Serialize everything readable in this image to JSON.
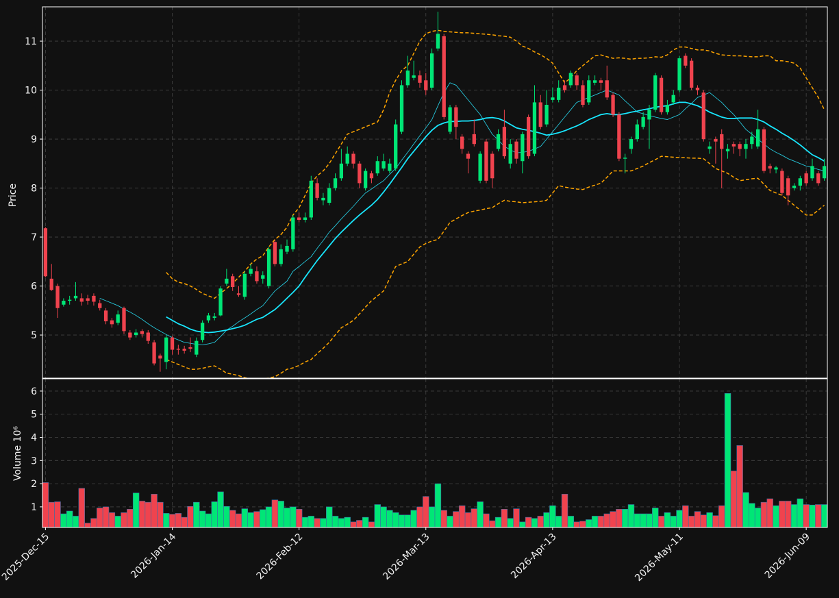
{
  "chart_data": {
    "type": "candlestick",
    "ylabel": "Price",
    "volume_label": "Volume  10⁶",
    "up_color": "#00e676",
    "down_color": "#f0434e",
    "grid": true,
    "ylim": [
      4.12,
      11.7
    ],
    "yticks": [
      5,
      6,
      7,
      8,
      9,
      10,
      11
    ],
    "volume_ylim": [
      0.11,
      6.53
    ],
    "volume_yticks": [
      1,
      2,
      3,
      4,
      5,
      6
    ],
    "categories": [
      "2025-Dec-15",
      null,
      null,
      null,
      null,
      null,
      null,
      null,
      null,
      null,
      null,
      null,
      null,
      null,
      null,
      null,
      null,
      null,
      null,
      null,
      null,
      "2026-Jan-14",
      null,
      null,
      null,
      null,
      null,
      null,
      null,
      null,
      null,
      null,
      null,
      null,
      null,
      null,
      null,
      null,
      null,
      null,
      null,
      null,
      "2026-Feb-12",
      null,
      null,
      null,
      null,
      null,
      null,
      null,
      null,
      null,
      null,
      null,
      null,
      null,
      null,
      null,
      null,
      null,
      null,
      null,
      null,
      "2026-Mar-13",
      null,
      null,
      null,
      null,
      null,
      null,
      null,
      null,
      null,
      null,
      null,
      null,
      null,
      null,
      null,
      null,
      null,
      null,
      null,
      null,
      "2026-Apr-13",
      null,
      null,
      null,
      null,
      null,
      null,
      null,
      null,
      null,
      null,
      null,
      null,
      null,
      null,
      null,
      null,
      null,
      null,
      null,
      null,
      "2026-May-11",
      null,
      null,
      null,
      null,
      null,
      null,
      null,
      null,
      null,
      null,
      null,
      null,
      null,
      null,
      null,
      null,
      null,
      null,
      null,
      null,
      "2026-Jun-09",
      null,
      null,
      null
    ],
    "open": [
      7.18,
      6.15,
      6.0,
      5.62,
      5.7,
      5.75,
      5.75,
      5.75,
      5.8,
      5.65,
      5.5,
      5.3,
      5.25,
      5.55,
      5.05,
      5.0,
      5.08,
      5.05,
      4.85,
      4.58,
      4.45,
      4.95,
      4.72,
      4.72,
      4.75,
      4.6,
      4.9,
      5.3,
      5.35,
      5.4,
      6.05,
      6.2,
      5.85,
      5.78,
      6.25,
      6.3,
      6.15,
      6.0,
      6.9,
      6.45,
      6.7,
      6.75,
      7.4,
      7.35,
      7.4,
      8.1,
      7.75,
      7.7,
      8.0,
      8.2,
      8.5,
      8.7,
      8.5,
      8.0,
      8.3,
      8.3,
      8.4,
      8.35,
      8.4,
      9.15,
      10.1,
      10.25,
      10.3,
      10.2,
      10.05,
      10.85,
      11.1,
      9.15,
      9.65,
      9.05,
      8.7,
      9.1,
      8.15,
      8.95,
      8.7,
      8.8,
      9.25,
      8.5,
      8.95,
      8.55,
      9.45,
      8.7,
      9.75,
      9.3,
      9.8,
      9.8,
      10.1,
      10.1,
      10.3,
      10.1,
      9.75,
      10.15,
      10.2,
      10.2,
      9.9,
      9.5,
      8.6,
      8.8,
      9.0,
      9.25,
      9.4,
      9.6,
      10.25,
      9.55,
      9.75,
      10.0,
      10.7,
      10.6,
      10.05,
      9.95,
      8.8,
      9.0,
      9.1,
      8.75,
      8.9,
      8.9,
      8.8,
      8.9,
      8.85,
      9.2,
      8.45,
      8.38,
      8.35,
      8.2,
      8.0,
      8.05,
      8.3,
      8.2,
      8.3,
      8.2
    ],
    "high": [
      7.2,
      6.45,
      6.05,
      5.75,
      5.8,
      6.08,
      5.85,
      5.82,
      5.85,
      5.72,
      5.55,
      5.35,
      5.5,
      5.58,
      5.1,
      5.12,
      5.12,
      5.1,
      4.9,
      4.62,
      5.0,
      4.98,
      4.8,
      4.78,
      4.95,
      4.95,
      5.3,
      5.45,
      5.45,
      6.0,
      6.35,
      6.25,
      6.0,
      6.3,
      6.45,
      6.4,
      6.3,
      6.8,
      6.95,
      6.85,
      6.95,
      7.45,
      7.5,
      7.5,
      8.25,
      8.2,
      7.9,
      8.1,
      8.3,
      8.8,
      8.85,
      8.75,
      8.55,
      8.4,
      8.35,
      8.65,
      8.7,
      8.6,
      9.4,
      10.2,
      10.7,
      10.6,
      10.4,
      10.35,
      10.85,
      11.6,
      11.15,
      9.7,
      9.7,
      9.1,
      8.75,
      9.4,
      8.75,
      9.0,
      8.75,
      9.2,
      9.6,
      9.0,
      9.0,
      9.15,
      9.5,
      10.1,
      9.9,
      10.0,
      10.05,
      10.2,
      10.2,
      10.4,
      10.35,
      10.2,
      10.3,
      10.3,
      10.25,
      10.5,
      9.95,
      9.55,
      8.7,
      9.05,
      9.4,
      9.55,
      9.7,
      10.35,
      10.3,
      9.8,
      10.0,
      10.7,
      10.75,
      10.65,
      10.1,
      10.0,
      8.95,
      9.05,
      9.2,
      8.9,
      8.95,
      8.95,
      9.0,
      9.15,
      9.6,
      9.25,
      8.5,
      8.45,
      8.4,
      8.25,
      8.1,
      8.25,
      8.35,
      8.6,
      8.35,
      8.6
    ],
    "low": [
      6.18,
      5.9,
      5.35,
      5.58,
      5.62,
      5.7,
      5.6,
      5.62,
      5.6,
      5.5,
      5.22,
      5.15,
      5.2,
      5.02,
      4.9,
      4.95,
      4.95,
      4.82,
      4.38,
      4.25,
      4.3,
      4.6,
      4.6,
      4.62,
      4.65,
      4.55,
      4.85,
      5.25,
      5.3,
      5.38,
      6.0,
      5.9,
      5.78,
      5.72,
      6.2,
      6.05,
      6.05,
      5.95,
      6.4,
      6.4,
      6.65,
      6.7,
      7.3,
      7.3,
      7.35,
      7.75,
      7.65,
      7.65,
      7.95,
      8.15,
      8.45,
      8.4,
      8.0,
      7.95,
      8.1,
      8.25,
      8.35,
      8.3,
      8.35,
      9.1,
      10.05,
      10.2,
      10.05,
      9.9,
      10.0,
      10.8,
      9.4,
      9.1,
      9.0,
      8.7,
      8.3,
      8.85,
      8.1,
      8.1,
      8.0,
      8.75,
      8.6,
      8.4,
      8.5,
      8.3,
      8.6,
      8.65,
      9.2,
      9.25,
      9.75,
      9.75,
      9.95,
      10.05,
      10.0,
      9.65,
      9.7,
      10.1,
      10.0,
      9.8,
      9.45,
      8.55,
      8.3,
      8.7,
      8.95,
      9.2,
      8.8,
      9.55,
      9.5,
      9.5,
      9.7,
      9.95,
      10.45,
      10.0,
      9.9,
      8.95,
      8.7,
      8.5,
      8.0,
      8.6,
      8.7,
      8.65,
      8.6,
      8.8,
      8.8,
      8.3,
      8.3,
      8.3,
      7.85,
      7.65,
      7.95,
      7.95,
      8.05,
      8.15,
      8.05,
      8.15
    ],
    "close": [
      6.2,
      5.92,
      5.55,
      5.7,
      5.72,
      5.8,
      5.68,
      5.7,
      5.68,
      5.55,
      5.28,
      5.22,
      5.42,
      5.08,
      4.95,
      5.05,
      5.02,
      4.88,
      4.42,
      4.52,
      4.95,
      4.7,
      4.7,
      4.68,
      4.72,
      4.88,
      5.25,
      5.4,
      5.38,
      5.95,
      6.15,
      5.98,
      5.82,
      6.25,
      6.35,
      6.1,
      6.22,
      6.75,
      6.45,
      6.75,
      6.82,
      7.4,
      7.35,
      7.4,
      8.15,
      7.8,
      7.8,
      8.0,
      8.2,
      8.5,
      8.7,
      8.5,
      8.1,
      8.35,
      8.2,
      8.55,
      8.55,
      8.5,
      9.3,
      10.1,
      10.4,
      10.3,
      10.15,
      10.0,
      10.75,
      11.15,
      9.45,
      9.65,
      9.25,
      8.8,
      8.6,
      8.9,
      8.7,
      8.15,
      8.2,
      9.1,
      8.65,
      8.9,
      8.6,
      9.1,
      8.65,
      9.75,
      9.25,
      9.7,
      9.85,
      10.05,
      10.0,
      10.35,
      10.1,
      9.7,
      10.2,
      10.2,
      10.15,
      9.85,
      9.5,
      8.6,
      8.62,
      9.0,
      9.3,
      9.45,
      9.6,
      10.3,
      9.55,
      9.7,
      9.9,
      10.65,
      10.5,
      10.05,
      10.0,
      9.0,
      8.85,
      8.95,
      8.8,
      8.8,
      8.85,
      8.8,
      8.9,
      9.05,
      9.2,
      8.35,
      8.4,
      8.42,
      7.9,
      7.85,
      8.05,
      8.2,
      8.1,
      8.45,
      8.1,
      8.45
    ],
    "volume": [
      2.05,
      1.2,
      1.22,
      0.7,
      0.82,
      0.6,
      1.8,
      0.3,
      0.5,
      0.95,
      1.0,
      0.75,
      0.6,
      0.75,
      0.9,
      1.6,
      1.25,
      1.2,
      1.55,
      1.2,
      0.72,
      0.68,
      0.72,
      0.55,
      1.02,
      1.2,
      0.82,
      0.7,
      1.22,
      1.65,
      1.02,
      0.85,
      0.7,
      0.92,
      0.75,
      0.8,
      0.88,
      1.0,
      1.3,
      1.25,
      0.95,
      1.0,
      0.9,
      0.55,
      0.6,
      0.5,
      0.5,
      1.0,
      0.6,
      0.5,
      0.55,
      0.35,
      0.42,
      0.55,
      0.35,
      1.1,
      1.0,
      0.85,
      0.75,
      0.65,
      0.65,
      0.85,
      1.0,
      1.45,
      1.0,
      2.0,
      0.85,
      0.6,
      0.8,
      1.05,
      0.75,
      0.92,
      1.22,
      0.7,
      0.4,
      0.55,
      0.9,
      0.5,
      0.92,
      0.35,
      0.55,
      0.5,
      0.6,
      0.75,
      1.05,
      0.6,
      1.55,
      0.6,
      0.35,
      0.38,
      0.45,
      0.6,
      0.6,
      0.7,
      0.8,
      0.9,
      0.9,
      1.1,
      0.7,
      0.7,
      0.7,
      0.95,
      0.6,
      0.75,
      0.6,
      0.85,
      1.05,
      0.6,
      0.8,
      0.65,
      0.75,
      0.62,
      1.05,
      5.9,
      2.55,
      3.65,
      1.62,
      1.15,
      0.95,
      1.2,
      1.35,
      1.05,
      1.25,
      1.25,
      1.1,
      1.35,
      1.1,
      1.08,
      1.1,
      1.1
    ],
    "series": [
      {
        "color": "#26c6da",
        "linewidth": 0.9,
        "dashed": false,
        "values": [
          null,
          null,
          null,
          null,
          null,
          null,
          null,
          null,
          null,
          5.75,
          5.7,
          5.65,
          5.6,
          5.53,
          5.47,
          5.4,
          5.32,
          5.23,
          5.15,
          5.08,
          5.01,
          4.95,
          4.9,
          4.85,
          4.83,
          4.81,
          4.8,
          4.82,
          4.85,
          4.97,
          5.1,
          5.18,
          5.27,
          5.35,
          5.43,
          5.52,
          5.6,
          5.75,
          5.9,
          6.0,
          6.1,
          6.3,
          6.4,
          6.5,
          6.6,
          6.77,
          6.93,
          7.1,
          7.23,
          7.37,
          7.5,
          7.63,
          7.77,
          7.9,
          7.98,
          8.07,
          8.15,
          8.28,
          8.4,
          8.57,
          8.73,
          8.9,
          9.07,
          9.23,
          9.4,
          9.68,
          9.95,
          10.15,
          10.1,
          9.95,
          9.8,
          9.65,
          9.5,
          9.3,
          9.1,
          8.98,
          8.85,
          8.78,
          8.72,
          8.73,
          8.75,
          8.8,
          8.85,
          9.0,
          9.15,
          9.3,
          9.45,
          9.6,
          9.75,
          9.8,
          9.85,
          9.9,
          9.95,
          10.0,
          9.95,
          9.9,
          9.78,
          9.67,
          9.55,
          9.52,
          9.48,
          9.45,
          9.42,
          9.4,
          9.45,
          9.5,
          9.62,
          9.73,
          9.85,
          9.9,
          9.95,
          9.85,
          9.75,
          9.62,
          9.5,
          9.35,
          9.2,
          9.1,
          9.0,
          8.9,
          8.8,
          8.73,
          8.67,
          8.6,
          8.55,
          8.5,
          8.45,
          8.42,
          8.38,
          8.35
        ]
      },
      {
        "color": "#18e7ff",
        "linewidth": 1.8,
        "dashed": false,
        "values": [
          null,
          null,
          null,
          null,
          null,
          null,
          null,
          null,
          null,
          null,
          null,
          null,
          null,
          null,
          null,
          null,
          null,
          null,
          null,
          null,
          5.37,
          5.3,
          5.23,
          5.18,
          5.12,
          5.08,
          5.06,
          5.05,
          5.06,
          5.08,
          5.1,
          5.13,
          5.16,
          5.2,
          5.26,
          5.32,
          5.36,
          5.44,
          5.52,
          5.63,
          5.75,
          5.87,
          6.0,
          6.18,
          6.35,
          6.52,
          6.67,
          6.82,
          6.97,
          7.1,
          7.22,
          7.34,
          7.45,
          7.55,
          7.65,
          7.77,
          7.92,
          8.08,
          8.25,
          8.42,
          8.6,
          8.75,
          8.9,
          9.05,
          9.18,
          9.28,
          9.33,
          9.36,
          9.36,
          9.37,
          9.37,
          9.38,
          9.4,
          9.43,
          9.44,
          9.42,
          9.37,
          9.3,
          9.23,
          9.2,
          9.18,
          9.15,
          9.12,
          9.08,
          9.1,
          9.13,
          9.17,
          9.22,
          9.27,
          9.33,
          9.4,
          9.45,
          9.5,
          9.52,
          9.5,
          9.5,
          9.52,
          9.55,
          9.57,
          9.6,
          9.62,
          9.65,
          9.67,
          9.68,
          9.72,
          9.75,
          9.75,
          9.72,
          9.68,
          9.62,
          9.55,
          9.5,
          9.45,
          9.42,
          9.42,
          9.43,
          9.43,
          9.43,
          9.4,
          9.35,
          9.27,
          9.2,
          9.12,
          9.05,
          8.97,
          8.88,
          8.78,
          8.68,
          8.62,
          8.55
        ]
      },
      {
        "color": "#ffa500",
        "linewidth": 1.5,
        "dashed": true,
        "values": [
          null,
          null,
          null,
          null,
          null,
          null,
          null,
          null,
          null,
          null,
          null,
          null,
          null,
          null,
          null,
          null,
          null,
          null,
          null,
          null,
          6.28,
          6.15,
          6.08,
          6.05,
          6.0,
          5.93,
          5.85,
          5.8,
          5.75,
          5.85,
          5.95,
          6.05,
          6.18,
          6.3,
          6.45,
          6.55,
          6.62,
          6.8,
          6.95,
          7.05,
          7.2,
          7.45,
          7.6,
          7.85,
          8.1,
          8.25,
          8.35,
          8.5,
          8.7,
          8.9,
          9.1,
          9.15,
          9.2,
          9.25,
          9.3,
          9.35,
          9.6,
          9.95,
          10.2,
          10.4,
          10.5,
          10.75,
          11.0,
          11.15,
          11.2,
          11.22,
          11.2,
          11.19,
          11.18,
          11.17,
          11.17,
          11.16,
          11.15,
          11.14,
          11.13,
          11.11,
          11.1,
          11.08,
          11.0,
          10.9,
          10.85,
          10.78,
          10.72,
          10.65,
          10.55,
          10.35,
          10.15,
          10.25,
          10.4,
          10.5,
          10.6,
          10.7,
          10.72,
          10.68,
          10.65,
          10.66,
          10.65,
          10.63,
          10.65,
          10.65,
          10.66,
          10.68,
          10.67,
          10.72,
          10.82,
          10.88,
          10.88,
          10.85,
          10.82,
          10.82,
          10.8,
          10.75,
          10.72,
          10.71,
          10.7,
          10.7,
          10.69,
          10.68,
          10.68,
          10.7,
          10.7,
          10.6,
          10.6,
          10.58,
          10.55,
          10.45,
          10.25,
          10.05,
          9.85,
          9.6
        ]
      },
      {
        "color": "#ffa500",
        "linewidth": 1.5,
        "dashed": true,
        "values": [
          null,
          null,
          null,
          null,
          null,
          null,
          null,
          null,
          null,
          null,
          null,
          null,
          null,
          null,
          null,
          null,
          null,
          null,
          null,
          null,
          4.5,
          4.45,
          4.4,
          4.35,
          4.3,
          4.3,
          4.32,
          4.35,
          4.37,
          4.3,
          4.22,
          4.2,
          4.17,
          4.13,
          4.1,
          4.1,
          4.11,
          4.12,
          4.15,
          4.22,
          4.3,
          4.33,
          4.38,
          4.45,
          4.5,
          4.62,
          4.73,
          4.85,
          5.0,
          5.15,
          5.22,
          5.3,
          5.43,
          5.57,
          5.7,
          5.8,
          5.9,
          6.15,
          6.4,
          6.45,
          6.5,
          6.65,
          6.8,
          6.87,
          6.92,
          6.95,
          7.12,
          7.3,
          7.37,
          7.44,
          7.5,
          7.53,
          7.55,
          7.58,
          7.6,
          7.68,
          7.75,
          7.73,
          7.72,
          7.7,
          7.71,
          7.72,
          7.73,
          7.75,
          7.9,
          8.05,
          8.02,
          8.0,
          7.98,
          7.97,
          8.02,
          8.06,
          8.1,
          8.22,
          8.35,
          8.35,
          8.35,
          8.35,
          8.4,
          8.45,
          8.52,
          8.58,
          8.65,
          8.64,
          8.63,
          8.62,
          8.62,
          8.61,
          8.61,
          8.6,
          8.5,
          8.4,
          8.35,
          8.3,
          8.22,
          8.15,
          8.17,
          8.19,
          8.2,
          8.08,
          7.95,
          7.9,
          7.85,
          7.75,
          7.65,
          7.55,
          7.45,
          7.45,
          7.55,
          7.65
        ]
      }
    ]
  }
}
